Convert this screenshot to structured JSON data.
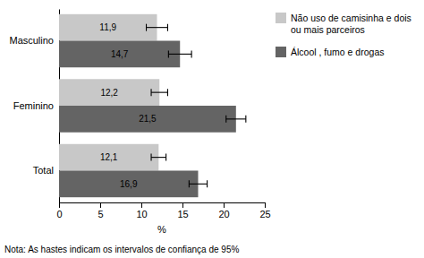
{
  "chart_data": {
    "type": "bar",
    "orientation": "horizontal",
    "categories": [
      "Masculino",
      "Feminino",
      "Total"
    ],
    "series": [
      {
        "name": "Não uso de camisinha e dois\nou mais parceiros",
        "color": "#c8c8c8",
        "values": [
          11.9,
          12.2,
          12.1
        ],
        "errors": [
          1.3,
          1.0,
          0.9
        ],
        "value_labels": [
          "11,9",
          "12,2",
          "12,1"
        ]
      },
      {
        "name": "Álcool , fumo e drogas",
        "color": "#646464",
        "values": [
          14.7,
          21.5,
          16.9
        ],
        "errors": [
          1.4,
          1.2,
          1.1
        ],
        "value_labels": [
          "14,7",
          "21,5",
          "16,9"
        ]
      }
    ],
    "xlabel": "%",
    "xlim": [
      0,
      25
    ],
    "xticks": [
      0,
      5,
      10,
      15,
      20,
      25
    ],
    "data_labels": true,
    "legend": "right",
    "annotations": [
      "Nota: As hastes indicam os intervalos de confiança de 95%"
    ]
  }
}
